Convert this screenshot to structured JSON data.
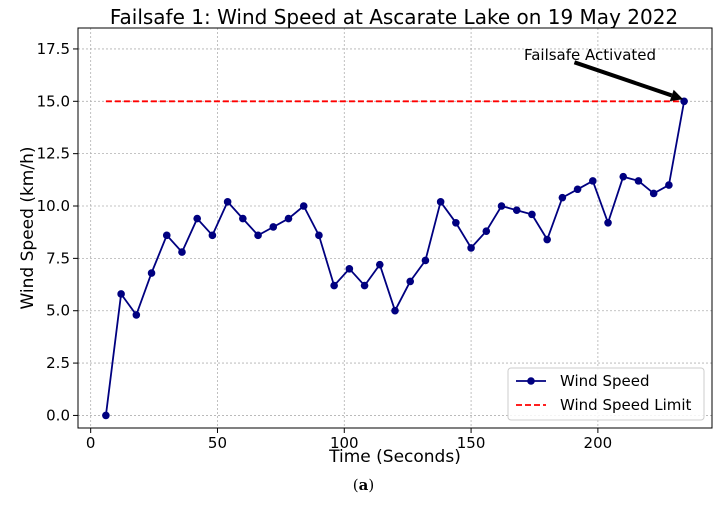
{
  "caption": {
    "open": "(",
    "letter": "a",
    "close": ")"
  },
  "chart_data": {
    "type": "line",
    "title": "Failsafe 1: Wind Speed at Ascarate Lake on 19 May 2022",
    "xlabel": "Time (Seconds)",
    "ylabel": "Wind Speed (km/h)",
    "xlim": [
      -5,
      245
    ],
    "ylim": [
      -0.6,
      18.5
    ],
    "x_ticks": [
      0,
      50,
      100,
      150,
      200
    ],
    "x_tick_labels": [
      "0",
      "50",
      "100",
      "150",
      "200"
    ],
    "y_ticks": [
      0,
      2.5,
      5,
      7.5,
      10,
      12.5,
      15,
      17.5
    ],
    "y_tick_labels": [
      "0.0",
      "2.5",
      "5.0",
      "7.5",
      "10.0",
      "12.5",
      "15.0",
      "17.5"
    ],
    "grid": true,
    "legend_position": "bottom-right",
    "series": [
      {
        "name": "Wind Speed",
        "color": "#000080",
        "style": "solid-with-markers",
        "x": [
          6,
          12,
          18,
          24,
          30,
          36,
          42,
          48,
          54,
          60,
          66,
          72,
          78,
          84,
          90,
          96,
          102,
          108,
          114,
          120,
          126,
          132,
          138,
          144,
          150,
          156,
          162,
          168,
          174,
          180,
          186,
          192,
          198,
          204,
          210,
          216,
          222,
          228,
          234
        ],
        "y": [
          0.0,
          5.8,
          4.8,
          6.8,
          8.6,
          7.8,
          9.4,
          8.6,
          10.2,
          9.4,
          8.6,
          9.0,
          9.4,
          10.0,
          8.6,
          6.2,
          7.0,
          6.2,
          7.2,
          5.0,
          6.4,
          7.4,
          10.2,
          9.2,
          8.0,
          8.8,
          10.0,
          9.8,
          9.6,
          8.4,
          10.4,
          10.8,
          11.2,
          9.2,
          11.4,
          11.2,
          10.6,
          11.0,
          15.0
        ]
      },
      {
        "name": "Wind Speed Limit",
        "color": "#ff0000",
        "style": "dashed",
        "x": [
          6,
          234
        ],
        "y": [
          15.0,
          15.0
        ]
      }
    ],
    "annotation": {
      "text": "Failsafe Activated",
      "x": 234,
      "y": 15.0,
      "text_x": 188,
      "text_y": 17.1
    }
  }
}
